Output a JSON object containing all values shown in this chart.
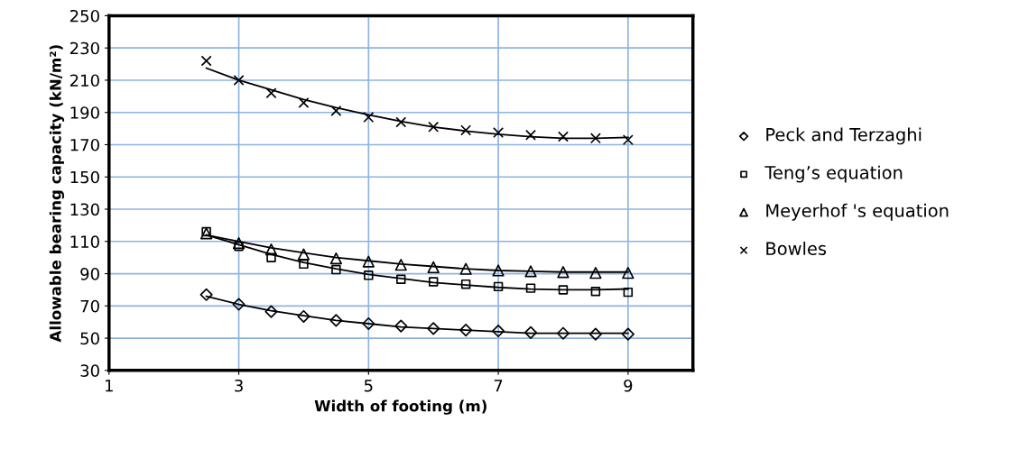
{
  "chart_data": {
    "type": "scatter",
    "xlabel": "Width of footing (m)",
    "ylabel": "Allowable bearing capacity (kN/m²)",
    "xlim": [
      1,
      10
    ],
    "xticks": [
      1,
      3,
      5,
      7,
      9
    ],
    "ylim": [
      30,
      250
    ],
    "yticks": [
      30,
      50,
      70,
      90,
      110,
      130,
      150,
      170,
      190,
      210,
      230,
      250
    ],
    "grid": true,
    "legend": "right",
    "x": [
      2.5,
      3,
      3.5,
      4,
      4.5,
      5,
      5.5,
      6,
      6.5,
      7,
      7.5,
      8,
      8.5,
      9
    ],
    "series": [
      {
        "name": "Peck and Terzaghi",
        "color": "#000000",
        "marker": "diamond",
        "values": [
          77,
          71,
          66.5,
          63.5,
          61,
          59,
          57.5,
          56,
          55,
          54.5,
          53.5,
          53,
          52.5,
          52.5
        ]
      },
      {
        "name": "Teng’s equation",
        "color": "#000000",
        "marker": "square",
        "values": [
          116,
          107,
          100,
          96,
          92.5,
          89,
          86.5,
          85,
          83.5,
          82,
          81,
          80,
          79,
          78.5
        ]
      },
      {
        "name": "Meyerhof 's equation",
        "color": "#000000",
        "marker": "triangle",
        "values": [
          115,
          109,
          105,
          102,
          99.5,
          97.5,
          95.5,
          94,
          93,
          92,
          91.5,
          91,
          90.5,
          90.5
        ]
      },
      {
        "name": "Bowles",
        "color": "#000000",
        "marker": "cross",
        "values": [
          222,
          210,
          202,
          196,
          191,
          187,
          184,
          181,
          179,
          177.5,
          176,
          175,
          174,
          173
        ]
      },
      {
        "type": "line",
        "color": "#000000",
        "values": [
          76,
          71,
          67,
          64,
          61,
          59,
          57,
          56,
          55,
          54,
          53,
          53,
          53,
          53
        ]
      },
      {
        "type": "line",
        "color": "#000000",
        "values": [
          114,
          108,
          102,
          97,
          93,
          89.5,
          87,
          84.5,
          83,
          81.5,
          80.5,
          80,
          80,
          80.5
        ]
      },
      {
        "type": "line",
        "color": "#000000",
        "values": [
          114,
          110,
          106,
          103,
          100,
          98,
          96,
          94.5,
          93,
          92,
          91.5,
          91,
          91,
          91
        ]
      },
      {
        "type": "line",
        "color": "#000000",
        "values": [
          217.5,
          210,
          204,
          198,
          193,
          188.5,
          184.5,
          181,
          178.5,
          176.5,
          175,
          174,
          174,
          174.5
        ]
      }
    ]
  }
}
